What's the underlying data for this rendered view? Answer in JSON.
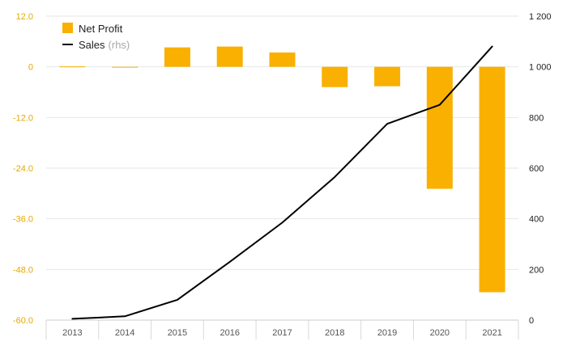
{
  "chart_data": {
    "type": "bar",
    "categories": [
      "2013",
      "2014",
      "2015",
      "2016",
      "2017",
      "2018",
      "2019",
      "2020",
      "2021"
    ],
    "series": [
      {
        "name": "Net Profit",
        "type": "bar",
        "axis": "left",
        "color": "#f9b000",
        "values": [
          0.1,
          0.0,
          4.6,
          4.8,
          3.4,
          -4.8,
          -4.6,
          -28.9,
          -53.4
        ]
      },
      {
        "name": "Sales",
        "name_suffix": "(rhs)",
        "type": "line",
        "axis": "right",
        "color": "#000000",
        "values": [
          5,
          15,
          80,
          230,
          385,
          565,
          775,
          850,
          1080
        ]
      }
    ],
    "y_left": {
      "range": [
        -60,
        12
      ],
      "ticks": [
        12,
        0,
        -12,
        -24,
        -36,
        -48,
        -60
      ],
      "tick_labels": [
        "12.0",
        "0",
        "-12.0",
        "-24.0",
        "-36.0",
        "-48.0",
        "-60.0"
      ],
      "color": "#e6a800"
    },
    "y_right": {
      "range": [
        0,
        1200
      ],
      "ticks": [
        1200,
        1000,
        800,
        600,
        400,
        200,
        0
      ],
      "tick_labels": [
        "1 200",
        "1 000",
        "800",
        "600",
        "400",
        "200",
        "0"
      ]
    },
    "grid": true,
    "legend_position": "top-left",
    "title": "",
    "xlabel": "",
    "ylabel": ""
  }
}
